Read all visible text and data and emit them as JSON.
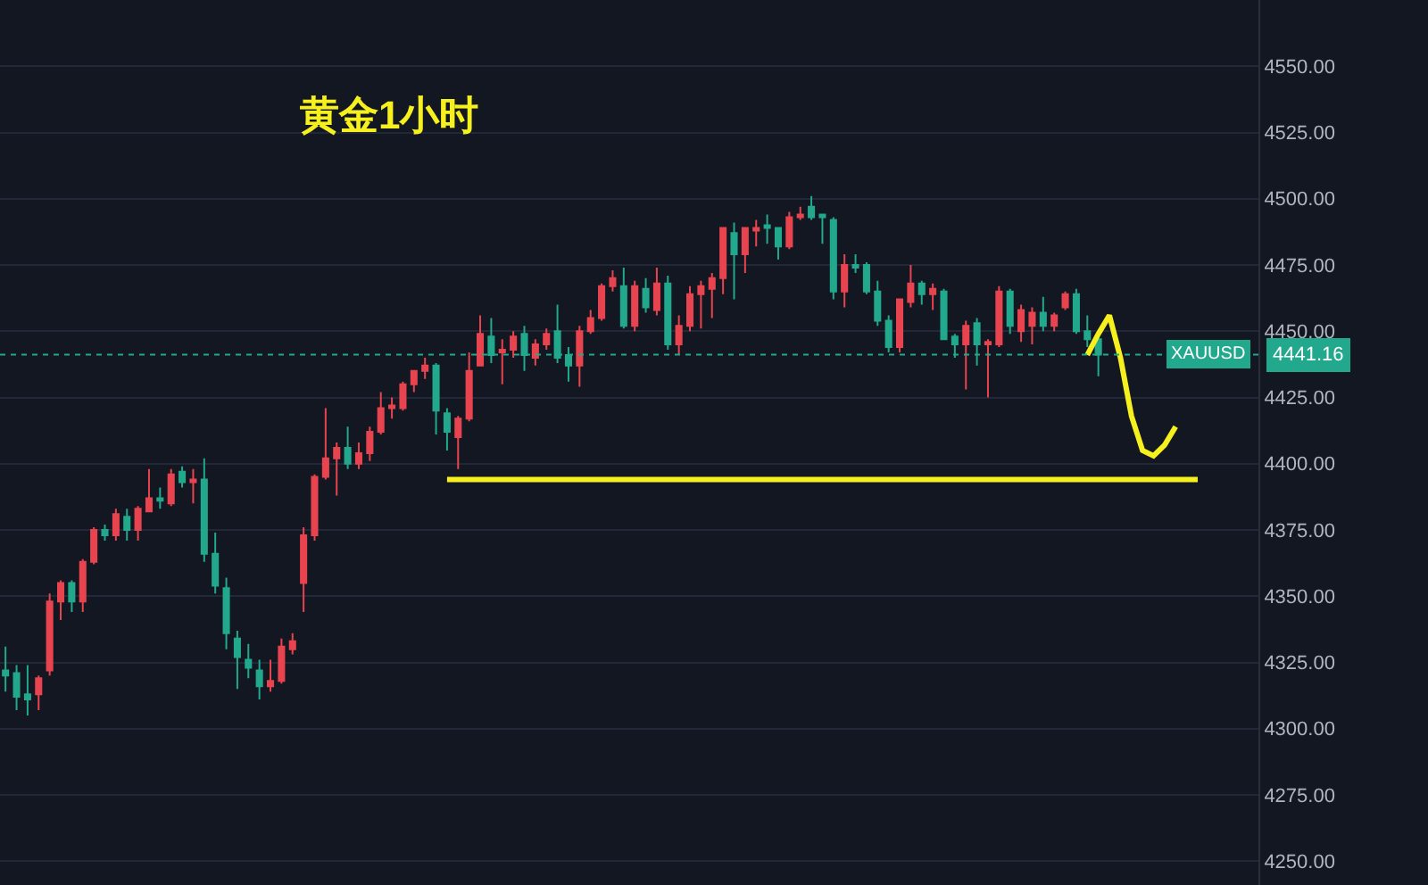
{
  "chart_data": {
    "type": "candlestick",
    "title": "黄金1小时",
    "categories": [
      null,
      null,
      null,
      null,
      null,
      null,
      null,
      null,
      null,
      null,
      null,
      null,
      null,
      null,
      null,
      null,
      null,
      null,
      null,
      null,
      null,
      null,
      null,
      null,
      null,
      null,
      null,
      null,
      null,
      null,
      null,
      null,
      null,
      null,
      null,
      null,
      null,
      null,
      null,
      null,
      null,
      null,
      null,
      null,
      null,
      null,
      null,
      null,
      null,
      null,
      null,
      null,
      null,
      null,
      null,
      null,
      null,
      null,
      null,
      null,
      null,
      null,
      null,
      null,
      null,
      null,
      null,
      null,
      null,
      null,
      null,
      null,
      null,
      null,
      null,
      null,
      null,
      null,
      null,
      null,
      null,
      null,
      null,
      null,
      null,
      null,
      null,
      null,
      null,
      null,
      null,
      null,
      null,
      null,
      null,
      null,
      null,
      null,
      null,
      null,
      null,
      null,
      null,
      null,
      null,
      null,
      null,
      null,
      null,
      null,
      null,
      null,
      null,
      null
    ],
    "ohlc": [
      [
        4322,
        4331,
        4314,
        4320
      ],
      [
        4321,
        4324,
        4307,
        4312
      ],
      [
        4313,
        4324,
        4305,
        4311
      ],
      [
        4313,
        4320,
        4307,
        4319
      ],
      [
        4322,
        4351,
        4320,
        4348
      ],
      [
        4348,
        4356,
        4341,
        4355
      ],
      [
        4355,
        4356,
        4344,
        4348
      ],
      [
        4348,
        4364,
        4344,
        4363
      ],
      [
        4363,
        4376,
        4362,
        4375
      ],
      [
        4375,
        4377,
        4371,
        4373
      ],
      [
        4373,
        4383,
        4371,
        4381
      ],
      [
        4380,
        4383,
        4371,
        4375
      ],
      [
        4375,
        4384,
        4371,
        4383
      ],
      [
        4382,
        4398,
        4382,
        4387
      ],
      [
        4387,
        4391,
        4383,
        4386
      ],
      [
        4385,
        4398,
        4384,
        4396
      ],
      [
        4397,
        4399,
        4391,
        4393
      ],
      [
        4393,
        4398,
        4385,
        4394
      ],
      [
        4394,
        4402,
        4363,
        4366
      ],
      [
        4366,
        4374,
        4351,
        4354
      ],
      [
        4353,
        4357,
        4330,
        4336
      ],
      [
        4334,
        4337,
        4315,
        4327
      ],
      [
        4326,
        4332,
        4319,
        4323
      ],
      [
        4322,
        4326,
        4311,
        4316
      ],
      [
        4316,
        4326,
        4314,
        4318
      ],
      [
        4318,
        4334,
        4317,
        4331
      ],
      [
        4330,
        4336,
        4328,
        4333
      ],
      [
        4355,
        4376,
        4344,
        4373
      ],
      [
        4373,
        4396,
        4371,
        4395
      ],
      [
        4395,
        4421,
        4394,
        4402
      ],
      [
        4402,
        4408,
        4388,
        4406
      ],
      [
        4406,
        4414,
        4398,
        4400
      ],
      [
        4400,
        4408,
        4398,
        4404
      ],
      [
        4404,
        4414,
        4401,
        4412
      ],
      [
        4412,
        4427,
        4411,
        4421
      ],
      [
        4421,
        4425,
        4417,
        4422
      ],
      [
        4421,
        4431,
        4420,
        4430
      ],
      [
        4430,
        4435,
        4427,
        4435
      ],
      [
        4435,
        4440,
        4432,
        4437
      ],
      [
        4437,
        4438,
        4411,
        4420
      ],
      [
        4419,
        4421,
        4405,
        4412
      ],
      [
        4410,
        4418,
        4398,
        4417
      ],
      [
        4417,
        4442,
        4416,
        4435
      ],
      [
        4437,
        4456,
        4437,
        4449
      ],
      [
        4448,
        4455,
        4438,
        4441
      ],
      [
        4442,
        4447,
        4430,
        4443
      ],
      [
        4443,
        4450,
        4440,
        4448
      ],
      [
        4449,
        4452,
        4435,
        4441
      ],
      [
        4440,
        4447,
        4437,
        4445
      ],
      [
        4445,
        4451,
        4443,
        4449
      ],
      [
        4450,
        4460,
        4438,
        4440
      ],
      [
        4441,
        4444,
        4431,
        4437
      ],
      [
        4437,
        4452,
        4429,
        4450
      ],
      [
        4450,
        4458,
        4449,
        4455
      ],
      [
        4455,
        4468,
        4454,
        4467
      ],
      [
        4467,
        4473,
        4465,
        4470
      ],
      [
        4467,
        4474,
        4451,
        4452
      ],
      [
        4452,
        4469,
        4450,
        4467
      ],
      [
        4466,
        4470,
        4457,
        4459
      ],
      [
        4458,
        4474,
        4456,
        4468
      ],
      [
        4468,
        4471,
        4443,
        4445
      ],
      [
        4445,
        4456,
        4441,
        4452
      ],
      [
        4452,
        4467,
        4450,
        4464
      ],
      [
        4464,
        4469,
        4451,
        4467
      ],
      [
        4466,
        4472,
        4455,
        4470
      ],
      [
        4470,
        4489,
        4464,
        4489
      ],
      [
        4487,
        4491,
        4462,
        4479
      ],
      [
        4479,
        4489,
        4472,
        4489
      ],
      [
        4488,
        4492,
        4482,
        4489
      ],
      [
        4490,
        4494,
        4483,
        4489
      ],
      [
        4489,
        4489,
        4477,
        4482
      ],
      [
        4482,
        4495,
        4481,
        4493
      ],
      [
        4493,
        4497,
        4492,
        4494
      ],
      [
        4497,
        4501,
        4492,
        4493
      ],
      [
        4494,
        4494,
        4483,
        4493
      ],
      [
        4492,
        4493,
        4462,
        4465
      ],
      [
        4465,
        4479,
        4459,
        4475
      ],
      [
        4475,
        4479,
        4472,
        4474
      ],
      [
        4475,
        4476,
        4464,
        4465
      ],
      [
        4465,
        4469,
        4452,
        4454
      ],
      [
        4454,
        4456,
        4442,
        4444
      ],
      [
        4444,
        4462,
        4442,
        4462
      ],
      [
        4461,
        4475,
        4459,
        4468
      ],
      [
        4468,
        4469,
        4460,
        4464
      ],
      [
        4464,
        4468,
        4458,
        4466
      ],
      [
        4465,
        4466,
        4447,
        4447
      ],
      [
        4448,
        4449,
        4440,
        4445
      ],
      [
        4445,
        4454,
        4428,
        4452
      ],
      [
        4453,
        4455,
        4437,
        4445
      ],
      [
        4445,
        4447,
        4425,
        4446
      ],
      [
        4445,
        4467,
        4444,
        4465
      ],
      [
        4465,
        4466,
        4449,
        4452
      ],
      [
        4450,
        4460,
        4446,
        4458
      ],
      [
        4452,
        4459,
        4445,
        4457
      ],
      [
        4457,
        4463,
        4450,
        4452
      ],
      [
        4452,
        4457,
        4450,
        4456
      ],
      [
        4459,
        4465,
        4458,
        4464
      ],
      [
        4464,
        4466,
        4449,
        4450
      ],
      [
        4450,
        4456,
        4444,
        4447
      ],
      [
        4447,
        4449,
        4433,
        4441.16
      ],
      null,
      null,
      null,
      null,
      null,
      null,
      null,
      null,
      null,
      null,
      null,
      null,
      null,
      null
    ],
    "colors": [
      "#22a88c",
      "#22a88c",
      "#22a88c",
      "#e8444f",
      "#e8444f",
      "#e8444f",
      "#22a88c",
      "#e8444f",
      "#e8444f",
      "#22a88c",
      "#e8444f",
      "#22a88c",
      "#e8444f",
      "#e8444f",
      "#22a88c",
      "#e8444f",
      "#22a88c",
      "#e8444f",
      "#22a88c",
      "#22a88c",
      "#22a88c",
      "#22a88c",
      "#22a88c",
      "#22a88c",
      "#e8444f",
      "#e8444f",
      "#e8444f",
      "#e8444f",
      "#e8444f",
      "#e8444f",
      "#e8444f",
      "#22a88c",
      "#e8444f",
      "#e8444f",
      "#e8444f",
      "#e8444f",
      "#e8444f",
      "#e8444f",
      "#e8444f",
      "#22a88c",
      "#22a88c",
      "#e8444f",
      "#e8444f",
      "#e8444f",
      "#22a88c",
      "#e8444f",
      "#e8444f",
      "#22a88c",
      "#e8444f",
      "#e8444f",
      "#22a88c",
      "#22a88c",
      "#e8444f",
      "#e8444f",
      "#e8444f",
      "#e8444f",
      "#22a88c",
      "#e8444f",
      "#22a88c",
      "#e8444f",
      "#22a88c",
      "#e8444f",
      "#e8444f",
      "#e8444f",
      "#e8444f",
      "#e8444f",
      "#22a88c",
      "#e8444f",
      "#e8444f",
      "#22a88c",
      "#22a88c",
      "#e8444f",
      "#e8444f",
      "#22a88c",
      "#22a88c",
      "#22a88c",
      "#e8444f",
      "#22a88c",
      "#22a88c",
      "#22a88c",
      "#22a88c",
      "#e8444f",
      "#e8444f",
      "#22a88c",
      "#e8444f",
      "#22a88c",
      "#22a88c",
      "#e8444f",
      "#22a88c",
      "#e8444f",
      "#e8444f",
      "#22a88c",
      "#e8444f",
      "#e8444f",
      "#22a88c",
      "#e8444f",
      "#e8444f",
      "#22a88c",
      "#22a88c",
      "#22a88c",
      null,
      null,
      null,
      null,
      null,
      null,
      null,
      null,
      null,
      null,
      null,
      null,
      null,
      null
    ],
    "series": [
      {
        "type": "line",
        "color": "#f5f01e",
        "values": [
          null,
          null,
          null,
          null,
          null,
          null,
          null,
          null,
          null,
          null,
          null,
          null,
          null,
          null,
          null,
          null,
          null,
          null,
          null,
          null,
          null,
          null,
          null,
          null,
          null,
          null,
          null,
          null,
          null,
          null,
          null,
          null,
          null,
          null,
          null,
          null,
          null,
          null,
          null,
          null,
          4394,
          4394,
          4394,
          4394,
          4394,
          4394,
          4394,
          4394,
          4394,
          4394,
          4394,
          4394,
          4394,
          4394,
          4394,
          4394,
          4394,
          4394,
          4394,
          4394,
          4394,
          4394,
          4394,
          4394,
          4394,
          4394,
          4394,
          4394,
          4394,
          4394,
          4394,
          4394,
          4394,
          4394,
          4394,
          4394,
          4394,
          4394,
          4394,
          4394,
          4394,
          4394,
          4394,
          4394,
          4394,
          4394,
          4394,
          4394,
          4394,
          4394,
          4394,
          4394,
          4394,
          4394,
          4394,
          4394,
          4394,
          4394,
          4394,
          4394,
          4394,
          4394,
          4394,
          4394,
          4394,
          4394,
          4394,
          4394,
          4394,
          null,
          null,
          null,
          null,
          null
        ]
      },
      {
        "type": "line",
        "color": "#f5f01e",
        "values": [
          null,
          null,
          null,
          null,
          null,
          null,
          null,
          null,
          null,
          null,
          null,
          null,
          null,
          null,
          null,
          null,
          null,
          null,
          null,
          null,
          null,
          null,
          null,
          null,
          null,
          null,
          null,
          null,
          null,
          null,
          null,
          null,
          null,
          null,
          null,
          null,
          null,
          null,
          null,
          null,
          null,
          null,
          null,
          null,
          null,
          null,
          null,
          null,
          null,
          null,
          null,
          null,
          null,
          null,
          null,
          null,
          null,
          null,
          null,
          null,
          null,
          null,
          null,
          null,
          null,
          null,
          null,
          null,
          null,
          null,
          null,
          null,
          null,
          null,
          null,
          null,
          null,
          null,
          null,
          null,
          null,
          null,
          null,
          null,
          null,
          null,
          null,
          null,
          null,
          null,
          null,
          null,
          null,
          null,
          null,
          null,
          null,
          null,
          4441,
          4449,
          4456,
          4440,
          4418,
          4405,
          4403,
          4407,
          4414,
          null,
          null,
          null,
          null,
          null,
          null,
          null
        ]
      }
    ],
    "ref_lines": [
      {
        "axis": "y",
        "value": 4441.16,
        "label": "XAUUSD",
        "color": "#22a88c",
        "line_style": "dotted"
      }
    ],
    "annotations": [
      "4441.16"
    ],
    "ylim": [
      4241,
      4575
    ],
    "yticks": [
      {
        "value": 4250,
        "label": "4250.00"
      },
      {
        "value": 4275,
        "label": "4275.00"
      },
      {
        "value": 4300,
        "label": "4300.00"
      },
      {
        "value": 4325,
        "label": "4325.00"
      },
      {
        "value": 4350,
        "label": "4350.00"
      },
      {
        "value": 4375,
        "label": "4375.00"
      },
      {
        "value": 4400,
        "label": "4400.00"
      },
      {
        "value": 4425,
        "label": "4425.00"
      },
      {
        "value": 4450,
        "label": "4450.00"
      },
      {
        "value": 4475,
        "label": "4475.00"
      },
      {
        "value": 4500,
        "label": "4500.00"
      },
      {
        "value": 4525,
        "label": "4525.00"
      },
      {
        "value": 4550,
        "label": "4550.00"
      }
    ],
    "grid": "y",
    "tick_labels": "y"
  }
}
